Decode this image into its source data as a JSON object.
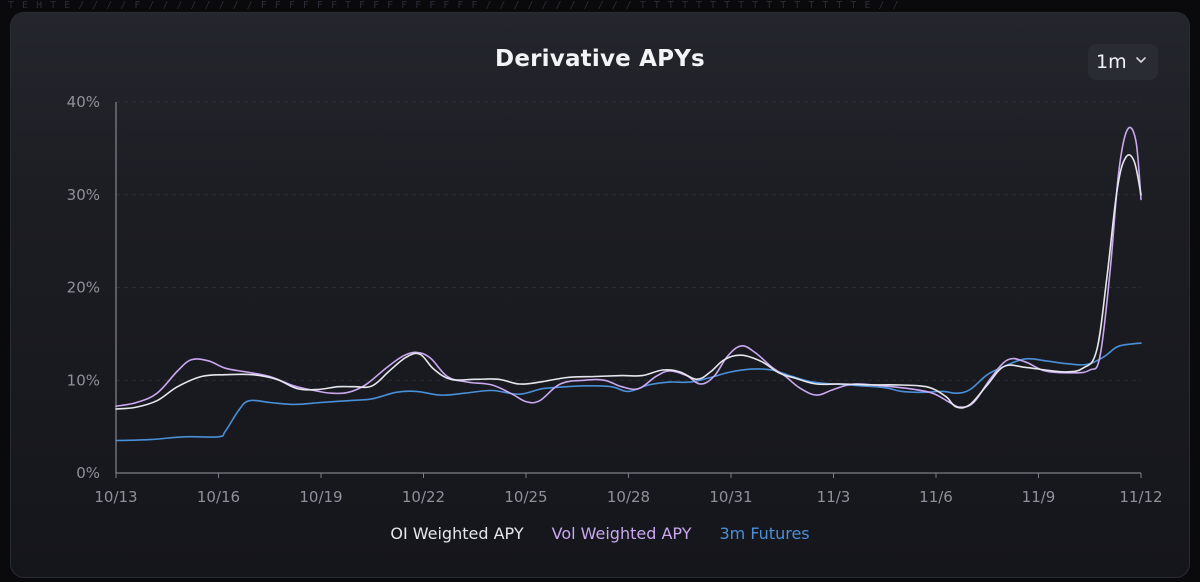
{
  "decor": {
    "top_pattern": "T E H T E / / / / F / / / / / / / / F F F F F F T F F F F F F F F F  / / / / / / / / / / / T T T T T T T T T T T T T T T T E / /"
  },
  "colors": {
    "background": "#0a0a0c",
    "card": "#1c1d23",
    "axis": "#8e919b",
    "grid": "#3a3c44",
    "oi": "#e6e7ee",
    "vol": "#c9a8f0",
    "futures": "#4a8fd8"
  },
  "header": {
    "title": "Derivative APYs"
  },
  "range_select": {
    "value": "1m",
    "icon": "chevron-down-icon"
  },
  "chart_data": {
    "type": "line",
    "title": "Derivative APYs",
    "xlabel": "",
    "ylabel": "",
    "ylim": [
      0,
      40
    ],
    "y_ticks": [
      "0%",
      "10%",
      "20%",
      "30%",
      "40%"
    ],
    "y_tick_values": [
      0,
      10,
      20,
      30,
      40
    ],
    "x_tick_labels": [
      "10/13",
      "10/16",
      "10/19",
      "10/22",
      "10/25",
      "10/28",
      "10/31",
      "11/3",
      "11/6",
      "11/9",
      "11/12"
    ],
    "x_range": [
      0,
      30
    ],
    "grid": "horizontal-dashed",
    "legend_position": "bottom-center",
    "series": [
      {
        "name": "OI Weighted APY",
        "color": "#e6e7ee",
        "points": [
          [
            0,
            6.9
          ],
          [
            0.6,
            7.1
          ],
          [
            1.2,
            7.8
          ],
          [
            1.8,
            9.3
          ],
          [
            2.5,
            10.4
          ],
          [
            3.2,
            10.6
          ],
          [
            4.0,
            10.6
          ],
          [
            4.7,
            10.1
          ],
          [
            5.3,
            9.1
          ],
          [
            5.9,
            9.0
          ],
          [
            6.5,
            9.3
          ],
          [
            7.0,
            9.3
          ],
          [
            7.5,
            9.4
          ],
          [
            8.0,
            11.0
          ],
          [
            8.5,
            12.5
          ],
          [
            8.9,
            12.8
          ],
          [
            9.3,
            11.2
          ],
          [
            9.8,
            10.1
          ],
          [
            10.5,
            10.1
          ],
          [
            11.2,
            10.1
          ],
          [
            11.8,
            9.6
          ],
          [
            12.4,
            9.8
          ],
          [
            13.2,
            10.3
          ],
          [
            14.0,
            10.4
          ],
          [
            14.8,
            10.5
          ],
          [
            15.4,
            10.5
          ],
          [
            16.0,
            11.1
          ],
          [
            16.5,
            10.9
          ],
          [
            17.0,
            10.1
          ],
          [
            17.4,
            10.9
          ],
          [
            17.8,
            12.2
          ],
          [
            18.3,
            12.7
          ],
          [
            18.9,
            12.0
          ],
          [
            19.4,
            10.8
          ],
          [
            19.9,
            10.2
          ],
          [
            20.5,
            9.6
          ],
          [
            21.2,
            9.6
          ],
          [
            22.0,
            9.5
          ],
          [
            22.8,
            9.5
          ],
          [
            23.5,
            9.4
          ],
          [
            23.9,
            9.1
          ],
          [
            24.3,
            8.2
          ],
          [
            24.6,
            7.1
          ],
          [
            25.0,
            7.4
          ],
          [
            25.5,
            9.5
          ],
          [
            26.0,
            11.5
          ],
          [
            26.6,
            11.4
          ],
          [
            27.2,
            11.1
          ],
          [
            27.8,
            10.9
          ],
          [
            28.3,
            11.3
          ],
          [
            28.7,
            13.2
          ],
          [
            29.0,
            21.0
          ],
          [
            29.3,
            30.5
          ],
          [
            29.55,
            34.0
          ],
          [
            29.8,
            33.6
          ],
          [
            30.0,
            30.0
          ]
        ]
      },
      {
        "name": "Vol Weighted APY",
        "color": "#c9a8f0",
        "points": [
          [
            0,
            7.2
          ],
          [
            0.6,
            7.6
          ],
          [
            1.2,
            8.6
          ],
          [
            1.8,
            11.0
          ],
          [
            2.2,
            12.2
          ],
          [
            2.7,
            12.1
          ],
          [
            3.2,
            11.3
          ],
          [
            3.8,
            10.9
          ],
          [
            4.5,
            10.4
          ],
          [
            5.2,
            9.4
          ],
          [
            5.8,
            8.9
          ],
          [
            6.3,
            8.6
          ],
          [
            6.8,
            8.7
          ],
          [
            7.3,
            9.5
          ],
          [
            7.9,
            11.3
          ],
          [
            8.4,
            12.6
          ],
          [
            8.8,
            13.0
          ],
          [
            9.2,
            12.4
          ],
          [
            9.7,
            10.4
          ],
          [
            10.3,
            9.8
          ],
          [
            11.0,
            9.5
          ],
          [
            11.6,
            8.5
          ],
          [
            12.0,
            7.7
          ],
          [
            12.4,
            7.8
          ],
          [
            13.0,
            9.6
          ],
          [
            13.7,
            10.0
          ],
          [
            14.3,
            10.0
          ],
          [
            14.8,
            9.3
          ],
          [
            15.3,
            9.1
          ],
          [
            15.8,
            10.4
          ],
          [
            16.2,
            11.0
          ],
          [
            16.7,
            10.5
          ],
          [
            17.1,
            9.6
          ],
          [
            17.5,
            10.4
          ],
          [
            17.9,
            12.6
          ],
          [
            18.3,
            13.7
          ],
          [
            18.7,
            13.0
          ],
          [
            19.2,
            11.4
          ],
          [
            19.6,
            10.4
          ],
          [
            20.0,
            9.2
          ],
          [
            20.5,
            8.4
          ],
          [
            21.0,
            9.0
          ],
          [
            21.6,
            9.6
          ],
          [
            22.4,
            9.4
          ],
          [
            23.2,
            9.1
          ],
          [
            23.9,
            8.6
          ],
          [
            24.4,
            7.6
          ],
          [
            24.7,
            7.1
          ],
          [
            25.1,
            7.6
          ],
          [
            25.6,
            10.2
          ],
          [
            26.1,
            12.2
          ],
          [
            26.6,
            12.0
          ],
          [
            27.2,
            11.0
          ],
          [
            28.0,
            10.8
          ],
          [
            28.5,
            11.1
          ],
          [
            28.8,
            12.6
          ],
          [
            29.1,
            22.0
          ],
          [
            29.35,
            32.5
          ],
          [
            29.6,
            37.0
          ],
          [
            29.85,
            35.8
          ],
          [
            30.0,
            29.5
          ]
        ]
      },
      {
        "name": "3m Futures",
        "color": "#4a8fd8",
        "points": [
          [
            0,
            3.5
          ],
          [
            1.0,
            3.6
          ],
          [
            2.0,
            3.9
          ],
          [
            3.0,
            3.9
          ],
          [
            3.2,
            4.5
          ],
          [
            3.6,
            6.8
          ],
          [
            3.9,
            7.8
          ],
          [
            4.5,
            7.6
          ],
          [
            5.2,
            7.4
          ],
          [
            6.0,
            7.6
          ],
          [
            6.8,
            7.8
          ],
          [
            7.5,
            8.0
          ],
          [
            8.2,
            8.7
          ],
          [
            8.8,
            8.8
          ],
          [
            9.5,
            8.4
          ],
          [
            10.2,
            8.6
          ],
          [
            11.0,
            8.9
          ],
          [
            11.8,
            8.5
          ],
          [
            12.5,
            9.1
          ],
          [
            13.2,
            9.3
          ],
          [
            13.8,
            9.4
          ],
          [
            14.5,
            9.3
          ],
          [
            15.0,
            8.8
          ],
          [
            15.6,
            9.5
          ],
          [
            16.2,
            9.8
          ],
          [
            16.8,
            9.8
          ],
          [
            17.4,
            10.3
          ],
          [
            18.0,
            10.9
          ],
          [
            18.6,
            11.2
          ],
          [
            19.2,
            11.1
          ],
          [
            19.8,
            10.4
          ],
          [
            20.4,
            9.8
          ],
          [
            21.0,
            9.6
          ],
          [
            21.8,
            9.4
          ],
          [
            22.5,
            9.2
          ],
          [
            23.0,
            8.8
          ],
          [
            23.6,
            8.7
          ],
          [
            24.2,
            8.8
          ],
          [
            24.6,
            8.6
          ],
          [
            25.0,
            9.0
          ],
          [
            25.5,
            10.6
          ],
          [
            26.0,
            11.5
          ],
          [
            26.6,
            12.3
          ],
          [
            27.2,
            12.1
          ],
          [
            27.8,
            11.8
          ],
          [
            28.4,
            11.7
          ],
          [
            28.9,
            12.5
          ],
          [
            29.3,
            13.6
          ],
          [
            29.7,
            13.9
          ],
          [
            30.0,
            14.0
          ]
        ]
      }
    ]
  }
}
